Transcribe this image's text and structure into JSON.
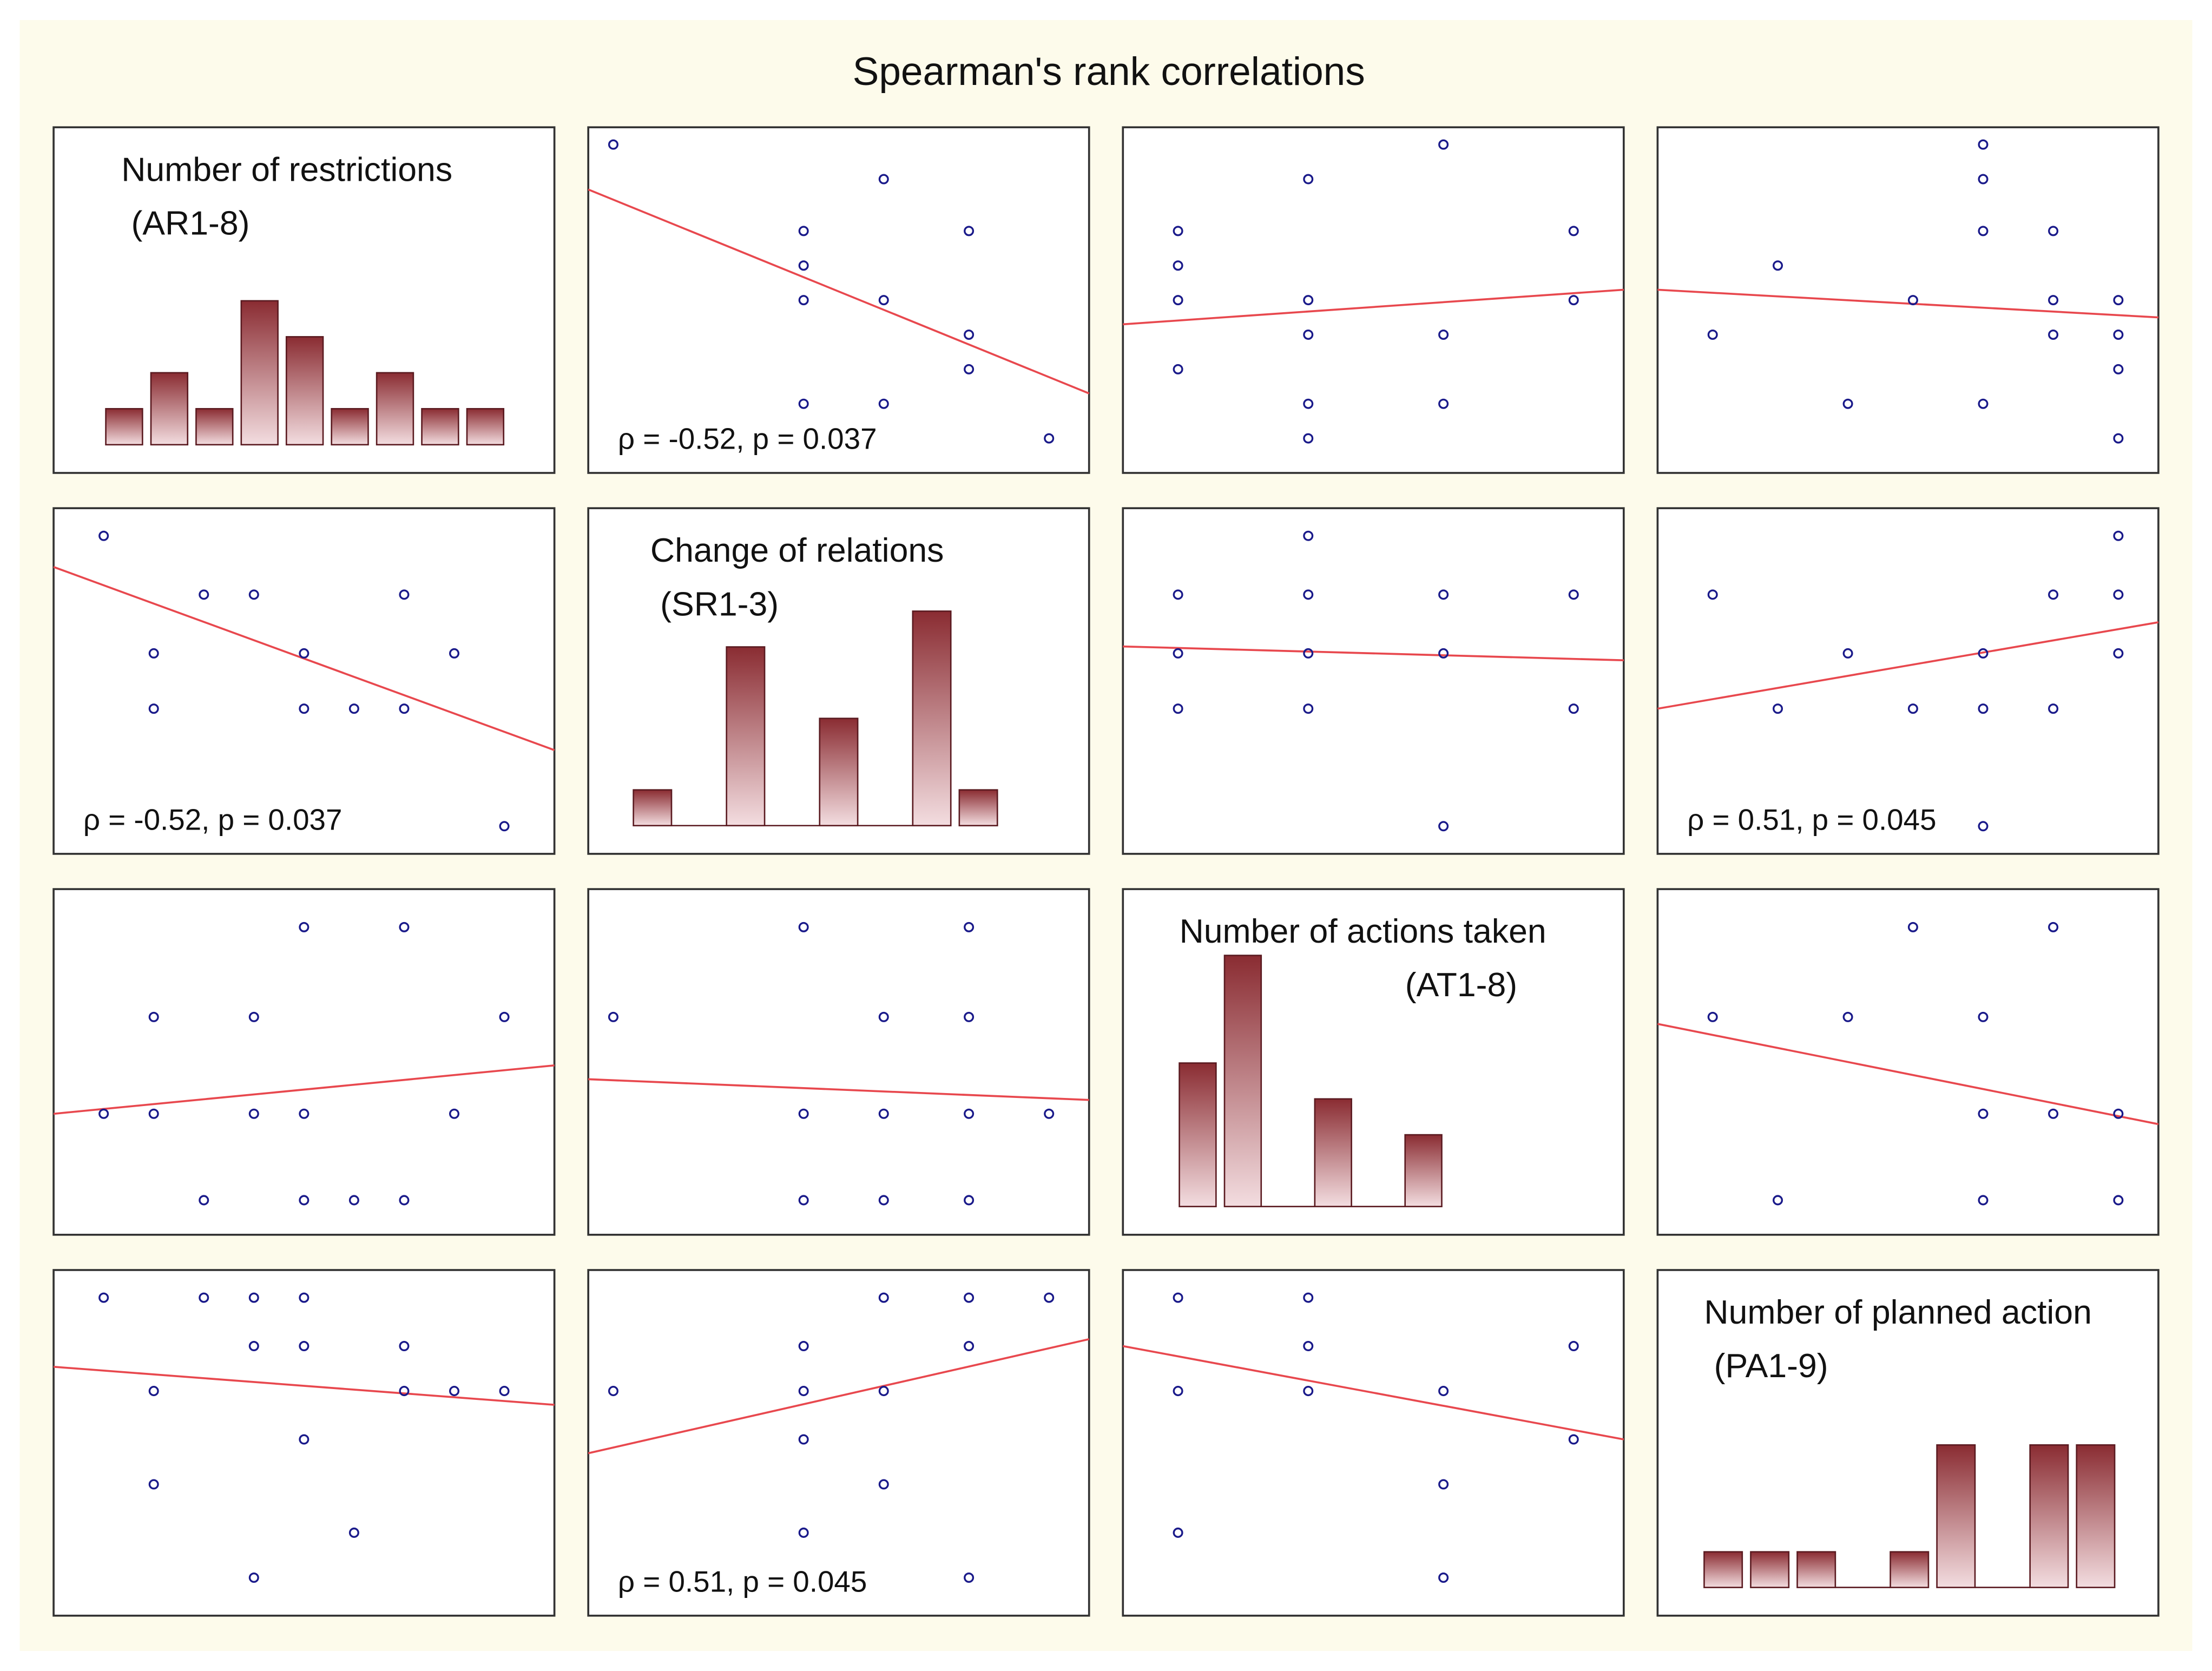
{
  "title": "Spearman's rank correlations",
  "colors": {
    "background": "#fdfbeb",
    "panel": "#ffffff",
    "border": "#333333",
    "point": "#1a1a8a",
    "fit_line": "#e8484e",
    "bar_top": "#8a2c32",
    "bar_bottom": "#f3dde0"
  },
  "chart_data": {
    "type": "scatter_matrix",
    "variables": [
      {
        "name": "Number of restrictions",
        "code": "(AR1-8)"
      },
      {
        "name": "Change of relations",
        "code": "(SR1-3)"
      },
      {
        "name": "Number of actions taken",
        "code": "(AT1-8)"
      },
      {
        "name": "Number of planned action",
        "code": "(PA1-9)"
      }
    ],
    "histograms": [
      {
        "index": 0,
        "values": [
          1,
          2,
          1,
          4,
          3,
          1,
          2,
          1,
          1
        ]
      },
      {
        "index": 1,
        "values": [
          1,
          0,
          5,
          0,
          3,
          0,
          6,
          1
        ]
      },
      {
        "index": 2,
        "values": [
          4,
          7,
          0,
          3,
          0,
          2
        ]
      },
      {
        "index": 3,
        "values": [
          1,
          1,
          1,
          0,
          1,
          4,
          0,
          4,
          4
        ]
      }
    ],
    "scatters": [
      {
        "row": 0,
        "col": 1,
        "annotation": "ρ = -0.52, p = 0.037",
        "points": [
          [
            0.05,
            0.95
          ],
          [
            0.43,
            0.7
          ],
          [
            0.43,
            0.6
          ],
          [
            0.43,
            0.5
          ],
          [
            0.43,
            0.2
          ],
          [
            0.59,
            0.85
          ],
          [
            0.59,
            0.5
          ],
          [
            0.59,
            0.2
          ],
          [
            0.76,
            0.7
          ],
          [
            0.76,
            0.4
          ],
          [
            0.76,
            0.3
          ],
          [
            0.92,
            0.1
          ]
        ],
        "fit": [
          [
            0,
            0.82
          ],
          [
            1,
            0.23
          ]
        ]
      },
      {
        "row": 0,
        "col": 2,
        "annotation": "",
        "points": [
          [
            0.11,
            0.7
          ],
          [
            0.11,
            0.6
          ],
          [
            0.11,
            0.5
          ],
          [
            0.11,
            0.3
          ],
          [
            0.37,
            0.85
          ],
          [
            0.37,
            0.5
          ],
          [
            0.37,
            0.4
          ],
          [
            0.37,
            0.2
          ],
          [
            0.37,
            0.1
          ],
          [
            0.64,
            0.95
          ],
          [
            0.64,
            0.4
          ],
          [
            0.64,
            0.2
          ],
          [
            0.9,
            0.7
          ],
          [
            0.9,
            0.5
          ]
        ],
        "fit": [
          [
            0,
            0.43
          ],
          [
            1,
            0.53
          ]
        ]
      },
      {
        "row": 0,
        "col": 3,
        "annotation": "",
        "points": [
          [
            0.11,
            0.4
          ],
          [
            0.24,
            0.6
          ],
          [
            0.38,
            0.2
          ],
          [
            0.51,
            0.5
          ],
          [
            0.65,
            0.95
          ],
          [
            0.65,
            0.85
          ],
          [
            0.65,
            0.7
          ],
          [
            0.65,
            0.2
          ],
          [
            0.79,
            0.7
          ],
          [
            0.79,
            0.5
          ],
          [
            0.79,
            0.4
          ],
          [
            0.92,
            0.5
          ],
          [
            0.92,
            0.4
          ],
          [
            0.92,
            0.3
          ],
          [
            0.92,
            0.1
          ]
        ],
        "fit": [
          [
            0,
            0.53
          ],
          [
            1,
            0.45
          ]
        ]
      },
      {
        "row": 1,
        "col": 0,
        "annotation": "ρ = -0.52, p = 0.037",
        "points": [
          [
            0.1,
            0.92
          ],
          [
            0.2,
            0.58
          ],
          [
            0.2,
            0.42
          ],
          [
            0.3,
            0.75
          ],
          [
            0.4,
            0.75
          ],
          [
            0.5,
            0.58
          ],
          [
            0.5,
            0.42
          ],
          [
            0.6,
            0.42
          ],
          [
            0.7,
            0.75
          ],
          [
            0.7,
            0.42
          ],
          [
            0.8,
            0.58
          ],
          [
            0.9,
            0.08
          ]
        ],
        "fit": [
          [
            0,
            0.83
          ],
          [
            1,
            0.3
          ]
        ]
      },
      {
        "row": 1,
        "col": 2,
        "annotation": "",
        "points": [
          [
            0.11,
            0.75
          ],
          [
            0.11,
            0.58
          ],
          [
            0.11,
            0.42
          ],
          [
            0.37,
            0.92
          ],
          [
            0.37,
            0.75
          ],
          [
            0.37,
            0.58
          ],
          [
            0.37,
            0.42
          ],
          [
            0.64,
            0.75
          ],
          [
            0.64,
            0.58
          ],
          [
            0.64,
            0.08
          ],
          [
            0.9,
            0.75
          ],
          [
            0.9,
            0.42
          ]
        ],
        "fit": [
          [
            0,
            0.6
          ],
          [
            1,
            0.56
          ]
        ]
      },
      {
        "row": 1,
        "col": 3,
        "annotation": "ρ = 0.51, p = 0.045",
        "points": [
          [
            0.11,
            0.75
          ],
          [
            0.24,
            0.42
          ],
          [
            0.38,
            0.58
          ],
          [
            0.51,
            0.42
          ],
          [
            0.65,
            0.58
          ],
          [
            0.65,
            0.42
          ],
          [
            0.65,
            0.08
          ],
          [
            0.79,
            0.75
          ],
          [
            0.79,
            0.42
          ],
          [
            0.92,
            0.92
          ],
          [
            0.92,
            0.75
          ],
          [
            0.92,
            0.58
          ]
        ],
        "fit": [
          [
            0,
            0.42
          ],
          [
            1,
            0.67
          ]
        ]
      },
      {
        "row": 2,
        "col": 0,
        "annotation": "",
        "points": [
          [
            0.1,
            0.35
          ],
          [
            0.2,
            0.63
          ],
          [
            0.2,
            0.35
          ],
          [
            0.3,
            0.1
          ],
          [
            0.4,
            0.63
          ],
          [
            0.4,
            0.35
          ],
          [
            0.5,
            0.89
          ],
          [
            0.5,
            0.35
          ],
          [
            0.5,
            0.1
          ],
          [
            0.6,
            0.1
          ],
          [
            0.7,
            0.89
          ],
          [
            0.7,
            0.1
          ],
          [
            0.8,
            0.35
          ],
          [
            0.9,
            0.63
          ]
        ],
        "fit": [
          [
            0,
            0.35
          ],
          [
            1,
            0.49
          ]
        ]
      },
      {
        "row": 2,
        "col": 1,
        "annotation": "",
        "points": [
          [
            0.05,
            0.63
          ],
          [
            0.43,
            0.89
          ],
          [
            0.43,
            0.35
          ],
          [
            0.43,
            0.1
          ],
          [
            0.59,
            0.63
          ],
          [
            0.59,
            0.35
          ],
          [
            0.59,
            0.1
          ],
          [
            0.76,
            0.89
          ],
          [
            0.76,
            0.63
          ],
          [
            0.76,
            0.35
          ],
          [
            0.76,
            0.1
          ],
          [
            0.92,
            0.35
          ]
        ],
        "fit": [
          [
            0,
            0.45
          ],
          [
            1,
            0.39
          ]
        ]
      },
      {
        "row": 2,
        "col": 3,
        "annotation": "",
        "points": [
          [
            0.11,
            0.63
          ],
          [
            0.24,
            0.1
          ],
          [
            0.38,
            0.63
          ],
          [
            0.51,
            0.89
          ],
          [
            0.65,
            0.63
          ],
          [
            0.65,
            0.35
          ],
          [
            0.65,
            0.1
          ],
          [
            0.79,
            0.89
          ],
          [
            0.79,
            0.35
          ],
          [
            0.92,
            0.35
          ],
          [
            0.92,
            0.1
          ]
        ],
        "fit": [
          [
            0,
            0.61
          ],
          [
            1,
            0.32
          ]
        ]
      },
      {
        "row": 3,
        "col": 0,
        "annotation": "",
        "points": [
          [
            0.1,
            0.92
          ],
          [
            0.2,
            0.65
          ],
          [
            0.2,
            0.38
          ],
          [
            0.3,
            0.92
          ],
          [
            0.4,
            0.92
          ],
          [
            0.4,
            0.78
          ],
          [
            0.4,
            0.11
          ],
          [
            0.5,
            0.92
          ],
          [
            0.5,
            0.78
          ],
          [
            0.5,
            0.51
          ],
          [
            0.6,
            0.24
          ],
          [
            0.7,
            0.78
          ],
          [
            0.7,
            0.65
          ],
          [
            0.8,
            0.65
          ],
          [
            0.9,
            0.65
          ]
        ],
        "fit": [
          [
            0,
            0.72
          ],
          [
            1,
            0.61
          ]
        ]
      },
      {
        "row": 3,
        "col": 1,
        "annotation": "ρ = 0.51, p = 0.045",
        "points": [
          [
            0.05,
            0.65
          ],
          [
            0.43,
            0.78
          ],
          [
            0.43,
            0.65
          ],
          [
            0.43,
            0.51
          ],
          [
            0.43,
            0.24
          ],
          [
            0.59,
            0.92
          ],
          [
            0.59,
            0.65
          ],
          [
            0.59,
            0.38
          ],
          [
            0.76,
            0.92
          ],
          [
            0.76,
            0.78
          ],
          [
            0.76,
            0.11
          ],
          [
            0.92,
            0.92
          ]
        ],
        "fit": [
          [
            0,
            0.47
          ],
          [
            1,
            0.8
          ]
        ]
      },
      {
        "row": 3,
        "col": 2,
        "annotation": "",
        "points": [
          [
            0.11,
            0.92
          ],
          [
            0.11,
            0.65
          ],
          [
            0.11,
            0.24
          ],
          [
            0.37,
            0.92
          ],
          [
            0.37,
            0.78
          ],
          [
            0.37,
            0.65
          ],
          [
            0.64,
            0.65
          ],
          [
            0.64,
            0.38
          ],
          [
            0.64,
            0.11
          ],
          [
            0.9,
            0.78
          ],
          [
            0.9,
            0.51
          ]
        ],
        "fit": [
          [
            0,
            0.78
          ],
          [
            1,
            0.51
          ]
        ]
      }
    ]
  }
}
